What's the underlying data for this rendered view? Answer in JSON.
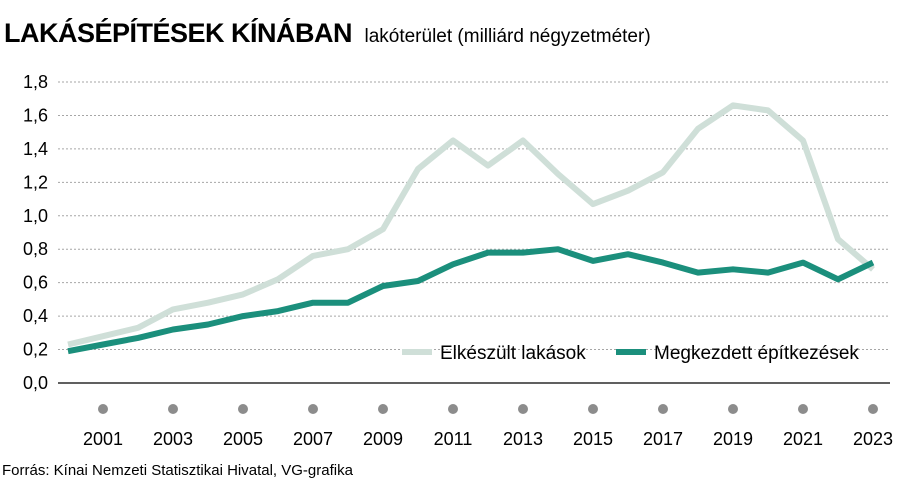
{
  "header": {
    "title": "LAKÁSÉPÍTÉSEK KÍNÁBAN",
    "subtitle": "lakóterület (milliárd négyzetméter)"
  },
  "source": "Forrás: Kínai Nemzeti Statisztikai Hivatal, VG-grafika",
  "colors": {
    "completed": "#cfdfd8",
    "started": "#1b8f7c",
    "grid": "#a6a6a6",
    "year_dot": "#8c8c8c"
  },
  "chart_data": {
    "type": "line",
    "title": "LAKÁSÉPÍTÉSEK KÍNÁBAN",
    "subtitle": "lakóterület (milliárd négyzetméter)",
    "x": [
      2000,
      2001,
      2002,
      2003,
      2004,
      2005,
      2006,
      2007,
      2008,
      2009,
      2010,
      2011,
      2012,
      2013,
      2014,
      2015,
      2016,
      2017,
      2018,
      2019,
      2020,
      2021,
      2022,
      2023
    ],
    "x_tick_labels": [
      "2001",
      "2003",
      "2005",
      "2007",
      "2009",
      "2011",
      "2013",
      "2015",
      "2017",
      "2019",
      "2021",
      "2023"
    ],
    "x_tick_values": [
      2001,
      2003,
      2005,
      2007,
      2009,
      2011,
      2013,
      2015,
      2017,
      2019,
      2021,
      2023
    ],
    "dot_years": [
      2001,
      2003,
      2005,
      2007,
      2009,
      2011,
      2013,
      2015,
      2017,
      2019,
      2021,
      2023
    ],
    "ylim": [
      0,
      1.8
    ],
    "y_ticks": [
      0,
      0.2,
      0.4,
      0.6,
      0.8,
      1.0,
      1.2,
      1.4,
      1.6,
      1.8
    ],
    "y_tick_labels": [
      "0,0",
      "0,2",
      "0,4",
      "0,6",
      "0,8",
      "1,0",
      "1,2",
      "1,4",
      "1,6",
      "1,8"
    ],
    "grid": "horizontal",
    "legend_position": "bottom-right",
    "series": [
      {
        "name": "Elkészült lakások",
        "key": "completed",
        "values": [
          0.23,
          0.28,
          0.33,
          0.44,
          0.48,
          0.53,
          0.62,
          0.76,
          0.8,
          0.92,
          1.28,
          1.45,
          1.3,
          1.45,
          1.25,
          1.07,
          1.15,
          1.26,
          1.52,
          1.66,
          1.63,
          1.45,
          0.86,
          0.68
        ]
      },
      {
        "name": "Megkezdett építkezések",
        "key": "started",
        "values": [
          0.19,
          0.23,
          0.27,
          0.32,
          0.35,
          0.4,
          0.43,
          0.48,
          0.48,
          0.58,
          0.61,
          0.71,
          0.78,
          0.78,
          0.8,
          0.73,
          0.77,
          0.72,
          0.66,
          0.68,
          0.66,
          0.72,
          0.62,
          0.72
        ]
      }
    ]
  }
}
